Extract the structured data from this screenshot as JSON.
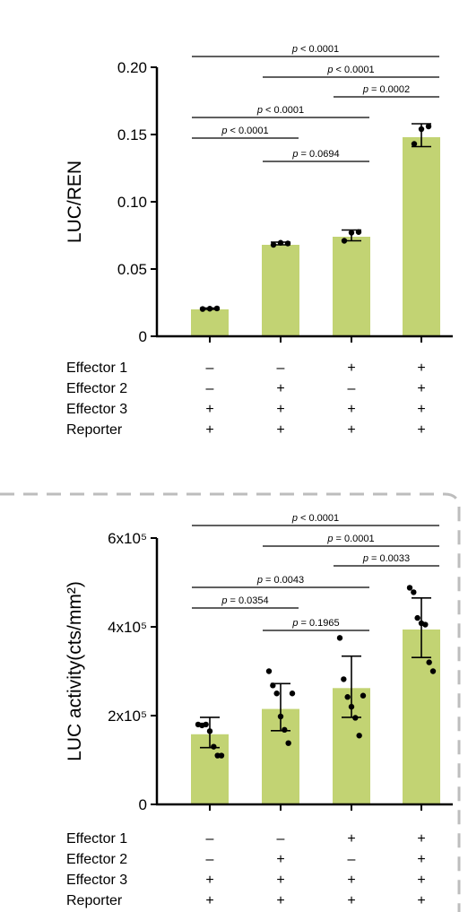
{
  "chart_data": [
    {
      "type": "bar",
      "ylabel": "LUC/REN",
      "ylim": [
        0,
        0.2
      ],
      "yticks": [
        {
          "value": 0,
          "label": "0"
        },
        {
          "value": 0.05,
          "label": "0.05"
        },
        {
          "value": 0.1,
          "label": "0.10"
        },
        {
          "value": 0.15,
          "label": "0.15"
        },
        {
          "value": 0.2,
          "label": "0.20"
        }
      ],
      "bar_color": "#c2d373",
      "values": [
        0.02,
        0.068,
        0.074,
        0.148
      ],
      "error": [
        {
          "low": 0.02,
          "high": 0.021
        },
        {
          "low": 0.068,
          "high": 0.07
        },
        {
          "low": 0.071,
          "high": 0.079
        },
        {
          "low": 0.141,
          "high": 0.158
        }
      ],
      "points": [
        [
          0.0203,
          0.0205,
          0.0207
        ],
        [
          0.068,
          0.0695,
          0.069
        ],
        [
          0.071,
          0.077,
          0.0775
        ],
        [
          0.143,
          0.154,
          0.156
        ]
      ],
      "comparisons": [
        {
          "from": 0,
          "to": 3,
          "p": "< 0.0001"
        },
        {
          "from": 1,
          "to": 3,
          "p": "< 0.0001"
        },
        {
          "from": 2,
          "to": 3,
          "p": "= 0.0002"
        },
        {
          "from": 0,
          "to": 2,
          "p": "< 0.0001"
        },
        {
          "from": 0,
          "to": 1,
          "p": "< 0.0001"
        },
        {
          "from": 1,
          "to": 2,
          "p": "= 0.0694"
        }
      ],
      "conditions": [
        {
          "label": "Effector 1",
          "values": [
            "–",
            "–",
            "+",
            "+"
          ]
        },
        {
          "label": "Effector 2",
          "values": [
            "–",
            "+",
            "–",
            "+"
          ]
        },
        {
          "label": "Effector 3",
          "values": [
            "+",
            "+",
            "+",
            "+"
          ]
        },
        {
          "label": "Reporter",
          "values": [
            "+",
            "+",
            "+",
            "+"
          ]
        }
      ]
    },
    {
      "type": "bar",
      "ylabel": "LUC activity(cts/mm²)",
      "ylim": [
        0,
        600000
      ],
      "yticks": [
        {
          "value": 0,
          "label": "0"
        },
        {
          "value": 200000,
          "label": "2x10⁵"
        },
        {
          "value": 400000,
          "label": "4x10⁵"
        },
        {
          "value": 600000,
          "label": "6x10⁵"
        }
      ],
      "bar_color": "#c2d373",
      "values": [
        158000,
        215000,
        262000,
        394000
      ],
      "error": [
        {
          "low": 128000,
          "high": 196000
        },
        {
          "low": 166000,
          "high": 272000
        },
        {
          "low": 196000,
          "high": 334000
        },
        {
          "low": 331000,
          "high": 465000
        }
      ],
      "points": [
        [
          180000,
          178000,
          180000,
          165000,
          130000,
          110000,
          110000
        ],
        [
          300000,
          268000,
          250000,
          198000,
          168000,
          138000,
          250000
        ],
        [
          375000,
          282000,
          242000,
          220000,
          195000,
          155000,
          245000
        ],
        [
          488000,
          478000,
          420000,
          408000,
          405000,
          320000,
          300000
        ]
      ],
      "comparisons": [
        {
          "from": 0,
          "to": 3,
          "p": "< 0.0001"
        },
        {
          "from": 1,
          "to": 3,
          "p": "= 0.0001"
        },
        {
          "from": 2,
          "to": 3,
          "p": "= 0.0033"
        },
        {
          "from": 0,
          "to": 2,
          "p": "= 0.0043"
        },
        {
          "from": 0,
          "to": 1,
          "p": "= 0.0354"
        },
        {
          "from": 1,
          "to": 2,
          "p": "= 0.1965"
        }
      ],
      "conditions": [
        {
          "label": "Effector 1",
          "values": [
            "–",
            "–",
            "+",
            "+"
          ]
        },
        {
          "label": "Effector 2",
          "values": [
            "–",
            "+",
            "–",
            "+"
          ]
        },
        {
          "label": "Effector 3",
          "values": [
            "+",
            "+",
            "+",
            "+"
          ]
        },
        {
          "label": "Reporter",
          "values": [
            "+",
            "+",
            "+",
            "+"
          ]
        }
      ]
    }
  ]
}
